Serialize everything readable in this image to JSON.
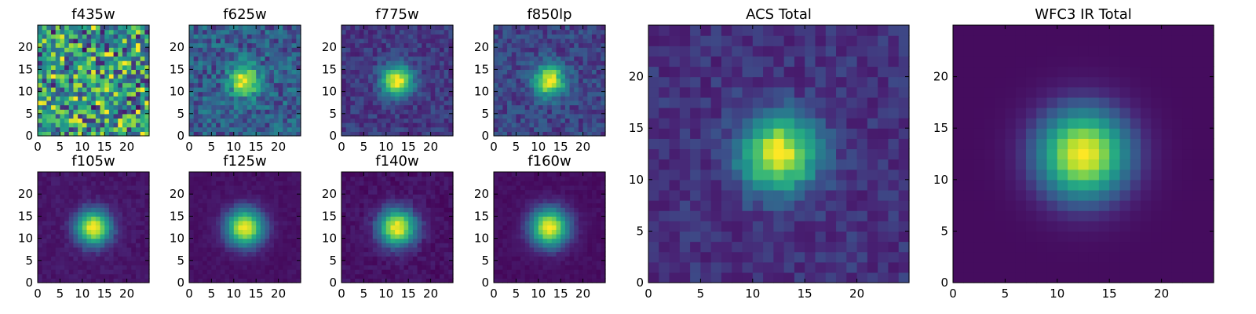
{
  "chart_data": [
    {
      "type": "heatmap",
      "title": "f435w",
      "xticks": [
        "0",
        "5",
        "10",
        "15",
        "20"
      ],
      "yticks": [
        "0",
        "5",
        "10",
        "15",
        "20"
      ],
      "xlim": [
        0,
        25
      ],
      "ylim": [
        0,
        25
      ],
      "grid": 25,
      "colormap": "viridis",
      "profile": {
        "kind": "noise",
        "peak": 0.6,
        "sigma": 10,
        "noise": 0.4,
        "background": 0.55
      }
    },
    {
      "type": "heatmap",
      "title": "f625w",
      "xticks": [
        "0",
        "5",
        "10",
        "15",
        "20"
      ],
      "yticks": [
        "0",
        "5",
        "10",
        "15",
        "20"
      ],
      "xlim": [
        0,
        25
      ],
      "ylim": [
        0,
        25
      ],
      "grid": 25,
      "colormap": "viridis",
      "profile": {
        "kind": "gaussian",
        "peak": 1.0,
        "sigma": 2.3,
        "noise": 0.16,
        "background": 0.3
      }
    },
    {
      "type": "heatmap",
      "title": "f775w",
      "xticks": [
        "0",
        "5",
        "10",
        "15",
        "20"
      ],
      "yticks": [
        "0",
        "5",
        "10",
        "15",
        "20"
      ],
      "xlim": [
        0,
        25
      ],
      "ylim": [
        0,
        25
      ],
      "grid": 25,
      "colormap": "viridis",
      "profile": {
        "kind": "gaussian",
        "peak": 1.0,
        "sigma": 2.4,
        "noise": 0.08,
        "background": 0.18
      }
    },
    {
      "type": "heatmap",
      "title": "f850lp",
      "xticks": [
        "0",
        "5",
        "10",
        "15",
        "20"
      ],
      "yticks": [
        "0",
        "5",
        "10",
        "15",
        "20"
      ],
      "xlim": [
        0,
        25
      ],
      "ylim": [
        0,
        25
      ],
      "grid": 25,
      "colormap": "viridis",
      "profile": {
        "kind": "gaussian",
        "peak": 1.0,
        "sigma": 2.4,
        "noise": 0.1,
        "background": 0.22
      }
    },
    {
      "type": "heatmap",
      "title": "f105w",
      "xticks": [
        "0",
        "5",
        "10",
        "15",
        "20"
      ],
      "yticks": [
        "0",
        "5",
        "10",
        "15",
        "20"
      ],
      "xlim": [
        0,
        25
      ],
      "ylim": [
        0,
        25
      ],
      "grid": 25,
      "colormap": "viridis",
      "profile": {
        "kind": "gaussian",
        "peak": 1.0,
        "sigma": 2.7,
        "noise": 0.04,
        "background": 0.08
      }
    },
    {
      "type": "heatmap",
      "title": "f125w",
      "xticks": [
        "0",
        "5",
        "10",
        "15",
        "20"
      ],
      "yticks": [
        "0",
        "5",
        "10",
        "15",
        "20"
      ],
      "xlim": [
        0,
        25
      ],
      "ylim": [
        0,
        25
      ],
      "grid": 25,
      "colormap": "viridis",
      "profile": {
        "kind": "gaussian",
        "peak": 1.0,
        "sigma": 2.9,
        "noise": 0.03,
        "background": 0.06
      }
    },
    {
      "type": "heatmap",
      "title": "f140w",
      "xticks": [
        "0",
        "5",
        "10",
        "15",
        "20"
      ],
      "yticks": [
        "0",
        "5",
        "10",
        "15",
        "20"
      ],
      "xlim": [
        0,
        25
      ],
      "ylim": [
        0,
        25
      ],
      "grid": 25,
      "colormap": "viridis",
      "profile": {
        "kind": "gaussian",
        "peak": 1.0,
        "sigma": 2.9,
        "noise": 0.05,
        "background": 0.06
      }
    },
    {
      "type": "heatmap",
      "title": "f160w",
      "xticks": [
        "0",
        "5",
        "10",
        "15",
        "20"
      ],
      "yticks": [
        "0",
        "5",
        "10",
        "15",
        "20"
      ],
      "xlim": [
        0,
        25
      ],
      "ylim": [
        0,
        25
      ],
      "grid": 25,
      "colormap": "viridis",
      "profile": {
        "kind": "gaussian",
        "peak": 1.0,
        "sigma": 3.0,
        "noise": 0.03,
        "background": 0.05
      }
    },
    {
      "type": "heatmap",
      "title": "ACS Total",
      "xticks": [
        "0",
        "5",
        "10",
        "15",
        "20"
      ],
      "yticks": [
        "0",
        "5",
        "10",
        "15",
        "20"
      ],
      "xlim": [
        0,
        25
      ],
      "ylim": [
        0,
        25
      ],
      "grid": 25,
      "colormap": "viridis",
      "profile": {
        "kind": "gaussian",
        "peak": 1.0,
        "sigma": 2.5,
        "noise": 0.07,
        "background": 0.16
      }
    },
    {
      "type": "heatmap",
      "title": "WFC3 IR Total",
      "xticks": [
        "0",
        "5",
        "10",
        "15",
        "20"
      ],
      "yticks": [
        "0",
        "5",
        "10",
        "15",
        "20"
      ],
      "xlim": [
        0,
        25
      ],
      "ylim": [
        0,
        25
      ],
      "grid": 25,
      "colormap": "viridis",
      "profile": {
        "kind": "gaussian",
        "peak": 1.0,
        "sigma": 3.0,
        "noise": 0.0,
        "background": 0.04
      }
    }
  ]
}
